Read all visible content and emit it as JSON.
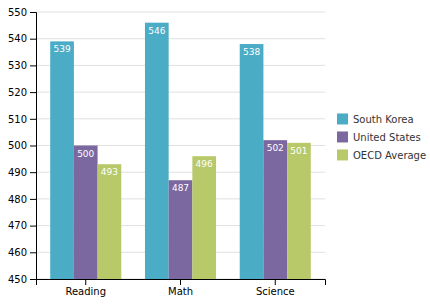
{
  "chart_data": {
    "type": "bar",
    "categories": [
      "Reading",
      "Math",
      "Science"
    ],
    "series": [
      {
        "name": "South Korea",
        "color": "#4BACC6",
        "values": [
          539,
          546,
          538
        ]
      },
      {
        "name": "United States",
        "color": "#7B68A0",
        "values": [
          500,
          487,
          502
        ]
      },
      {
        "name": "OECD Average",
        "color": "#B8C96A",
        "values": [
          493,
          496,
          501
        ]
      }
    ],
    "ylim": [
      450,
      550
    ],
    "yticks": [
      450,
      460,
      470,
      480,
      490,
      500,
      510,
      520,
      530,
      540,
      550
    ],
    "grid": true,
    "data_labels": true,
    "legend": "right"
  }
}
